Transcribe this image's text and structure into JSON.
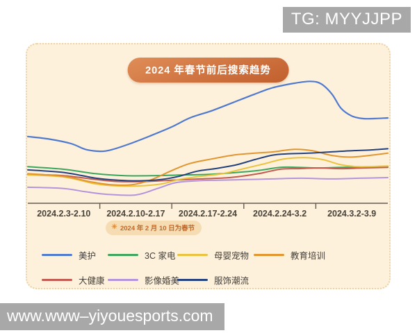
{
  "watermarks": {
    "tg": "TG: MYYJJPP",
    "url": "www.www–yiyouesports.com"
  },
  "festival_badge": {
    "icon": "sun-icon",
    "text": "2024 年 2 月 10 日为春节"
  },
  "colors": {
    "card_bg": "#fdf1dc",
    "card_border": "#ead2a9",
    "title_pill": "#cf7440",
    "axis": "#655c50",
    "watermark_bg": "#a8a8a8",
    "badge_bg": "#f5dcb3",
    "badge_text": "#bf6a2c"
  },
  "chart_data": {
    "type": "line",
    "title": "2024 年春节前后搜索趋势",
    "xlabel": "",
    "ylabel": "",
    "categories": [
      "2024.2.3-2.10",
      "2024.2.10-2.17",
      "2024.2.17-2.24",
      "2024.2.24-3.2",
      "2024.3.2-3.9"
    ],
    "annotation": "2024 年 2 月 10 日为春节",
    "ylim": [
      0,
      100
    ],
    "grid": false,
    "legend_position": "bottom",
    "series": [
      {
        "name": "美护",
        "color": "#4f79cf",
        "points": [
          [
            0,
            52
          ],
          [
            6,
            50
          ],
          [
            12,
            46.5
          ],
          [
            16,
            42
          ],
          [
            20,
            40.5
          ],
          [
            23,
            41.5
          ],
          [
            28,
            46
          ],
          [
            34,
            52.5
          ],
          [
            40,
            59.5
          ],
          [
            45,
            66.5
          ],
          [
            51,
            72
          ],
          [
            57,
            78.5
          ],
          [
            63,
            85
          ],
          [
            68,
            90
          ],
          [
            74,
            93.5
          ],
          [
            78.5,
            95
          ],
          [
            81.5,
            93
          ],
          [
            84.5,
            85
          ],
          [
            87,
            74
          ],
          [
            90,
            68
          ],
          [
            93,
            66
          ],
          [
            96.5,
            66
          ],
          [
            100,
            66.5
          ]
        ]
      },
      {
        "name": "3C 家电",
        "color": "#3aa65c",
        "points": [
          [
            0,
            28.5
          ],
          [
            10,
            26.5
          ],
          [
            19,
            23
          ],
          [
            27,
            21.5
          ],
          [
            35,
            21.5
          ],
          [
            42,
            22
          ],
          [
            50,
            22.5
          ],
          [
            58,
            24
          ],
          [
            64,
            25.5
          ],
          [
            70,
            28
          ],
          [
            75,
            28
          ],
          [
            81,
            27.5
          ],
          [
            87,
            28
          ],
          [
            93,
            28
          ],
          [
            100,
            28.5
          ]
        ]
      },
      {
        "name": "母婴宠物",
        "color": "#eac23e",
        "points": [
          [
            0,
            22
          ],
          [
            10,
            20.5
          ],
          [
            19,
            15
          ],
          [
            25,
            13.5
          ],
          [
            31,
            13.5
          ],
          [
            37,
            15
          ],
          [
            42,
            18.5
          ],
          [
            48,
            21
          ],
          [
            54,
            23
          ],
          [
            60,
            27
          ],
          [
            66,
            31
          ],
          [
            71,
            34.5
          ],
          [
            77,
            35.5
          ],
          [
            82,
            34
          ],
          [
            87,
            30
          ],
          [
            92,
            28.5
          ],
          [
            100,
            29
          ]
        ]
      },
      {
        "name": "教育培训",
        "color": "#e2952e",
        "points": [
          [
            0,
            23
          ],
          [
            10,
            21
          ],
          [
            17,
            17
          ],
          [
            23,
            14.5
          ],
          [
            29,
            14.5
          ],
          [
            34,
            18
          ],
          [
            40,
            25.5
          ],
          [
            45,
            31
          ],
          [
            51,
            34.5
          ],
          [
            57,
            37.5
          ],
          [
            63,
            39
          ],
          [
            68,
            40
          ],
          [
            74,
            42
          ],
          [
            79,
            41
          ],
          [
            84,
            37.5
          ],
          [
            89,
            36
          ],
          [
            94,
            37
          ],
          [
            100,
            39
          ]
        ]
      },
      {
        "name": "大健康",
        "color": "#c25a50",
        "points": [
          [
            0,
            22.5
          ],
          [
            10,
            21.5
          ],
          [
            19,
            18.5
          ],
          [
            25,
            17
          ],
          [
            33,
            17
          ],
          [
            40,
            18
          ],
          [
            48,
            19
          ],
          [
            56,
            20
          ],
          [
            64,
            23
          ],
          [
            70,
            26.5
          ],
          [
            75,
            27
          ],
          [
            81,
            27.5
          ],
          [
            87,
            27
          ],
          [
            93,
            27.5
          ],
          [
            100,
            28
          ]
        ]
      },
      {
        "name": "影像婚美",
        "color": "#b493dd",
        "points": [
          [
            0,
            12.5
          ],
          [
            10,
            11.5
          ],
          [
            16,
            9
          ],
          [
            22,
            7
          ],
          [
            30,
            6.5
          ],
          [
            36,
            11.5
          ],
          [
            41,
            16
          ],
          [
            47,
            17.5
          ],
          [
            53,
            18
          ],
          [
            61,
            18.5
          ],
          [
            68,
            19
          ],
          [
            76,
            19.5
          ],
          [
            84,
            19
          ],
          [
            92,
            19.5
          ],
          [
            100,
            20
          ]
        ]
      },
      {
        "name": "服饰潮流",
        "color": "#22407e",
        "points": [
          [
            0,
            26
          ],
          [
            10,
            24
          ],
          [
            19,
            19.5
          ],
          [
            25,
            18
          ],
          [
            31,
            17.5
          ],
          [
            37,
            18.5
          ],
          [
            42,
            21
          ],
          [
            47,
            25
          ],
          [
            52,
            27
          ],
          [
            58,
            30
          ],
          [
            63,
            34
          ],
          [
            68,
            37.5
          ],
          [
            72,
            38.5
          ],
          [
            78,
            39
          ],
          [
            84,
            40
          ],
          [
            90,
            41
          ],
          [
            95,
            41.5
          ],
          [
            100,
            42.5
          ]
        ]
      }
    ]
  }
}
